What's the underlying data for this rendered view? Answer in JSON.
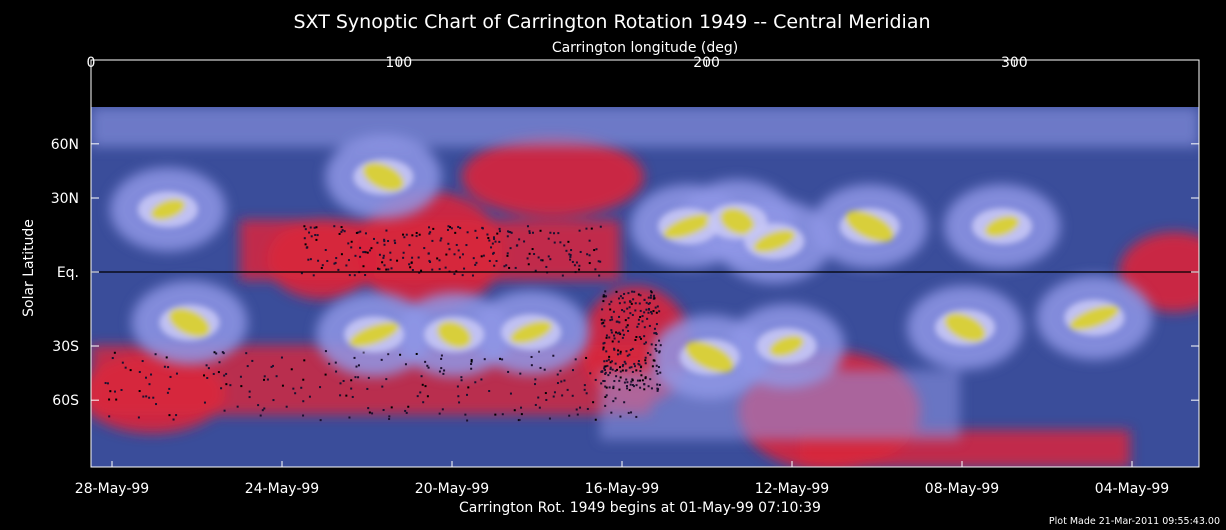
{
  "chart_data": {
    "type": "heatmap",
    "title": "SXT Synoptic Chart of Carrington Rotation 1949 -- Central Meridian",
    "top_axis": {
      "label": "Carrington longitude (deg)",
      "range": [
        0,
        360
      ],
      "ticks": [
        0,
        100,
        200,
        300
      ],
      "tick_labels": [
        "0",
        "100",
        "200",
        "300"
      ]
    },
    "left_axis": {
      "label": "Solar Latitude",
      "ticks": [
        "60N",
        "30N",
        "Eq.",
        "30S",
        "60S"
      ],
      "tick_values": [
        60,
        30,
        0,
        -30,
        -60
      ]
    },
    "bottom_axis": {
      "label": "Carrington Rot. 1949 begins at 01-May-99 07:10:39",
      "ticks": [
        "28-May-99",
        "24-May-99",
        "20-May-99",
        "16-May-99",
        "12-May-99",
        "08-May-99",
        "04-May-99"
      ]
    },
    "colors": {
      "background": "#000000",
      "quiet": "#2a3f86",
      "coronal": "#8f97e6",
      "bright": "#c7c7f5",
      "active": "#d8cf3a",
      "hole": "#d9253c",
      "axes": "#ffffff"
    },
    "active_regions": [
      {
        "lon": 25,
        "lat": 25
      },
      {
        "lon": 95,
        "lat": 40
      },
      {
        "lon": 194,
        "lat": 18
      },
      {
        "lon": 210,
        "lat": 20
      },
      {
        "lon": 222,
        "lat": 12
      },
      {
        "lon": 253,
        "lat": 18
      },
      {
        "lon": 296,
        "lat": 18
      },
      {
        "lon": 32,
        "lat": -20
      },
      {
        "lon": 92,
        "lat": -25
      },
      {
        "lon": 118,
        "lat": -25
      },
      {
        "lon": 143,
        "lat": -24
      },
      {
        "lon": 201,
        "lat": -35
      },
      {
        "lon": 226,
        "lat": -30
      },
      {
        "lon": 284,
        "lat": -22
      },
      {
        "lon": 326,
        "lat": -18
      }
    ],
    "coronal_holes": [
      {
        "lon": 75,
        "lat": 5
      },
      {
        "lon": 110,
        "lat": 8
      },
      {
        "lon": 150,
        "lat": 40
      },
      {
        "lon": 177,
        "lat": -30
      },
      {
        "lon": 20,
        "lat": -55
      },
      {
        "lon": 240,
        "lat": -70
      },
      {
        "lon": 352,
        "lat": 0
      }
    ]
  },
  "footer": {
    "timestamp": "Plot Made 21-Mar-2011 09:55:43.00"
  }
}
